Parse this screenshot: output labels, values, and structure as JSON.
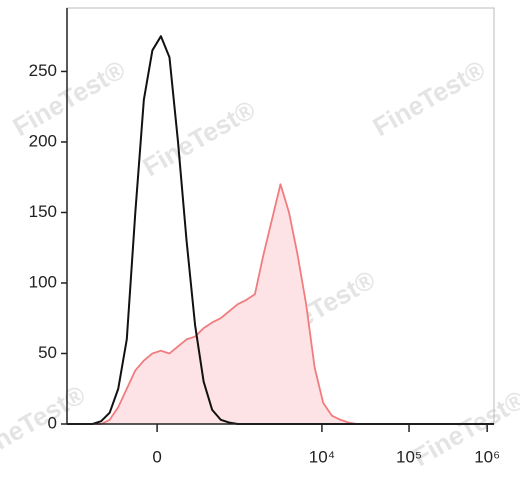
{
  "chart_data": {
    "type": "line",
    "watermark": "FineTest®",
    "x": [
      0,
      20,
      40,
      60,
      80,
      100,
      120,
      140,
      160,
      180,
      200,
      220,
      240,
      260,
      280,
      300,
      320,
      340,
      360,
      380,
      400,
      420,
      440,
      460,
      480,
      500,
      520,
      540,
      560,
      580,
      600,
      620,
      640,
      660,
      680,
      700,
      720,
      740,
      760,
      780,
      800,
      820,
      840,
      860,
      880,
      900,
      920,
      940,
      960,
      980,
      1000
    ],
    "series": [
      {
        "color": "#f07c7e",
        "fill": "#fde3e5",
        "area": true,
        "values": [
          0,
          0,
          0,
          0,
          0,
          3,
          12,
          25,
          38,
          45,
          50,
          52,
          50,
          55,
          60,
          62,
          68,
          72,
          75,
          80,
          85,
          88,
          92,
          120,
          145,
          170,
          150,
          120,
          85,
          40,
          15,
          6,
          3,
          1,
          0,
          0,
          0,
          0,
          0,
          0,
          0,
          0,
          0,
          0,
          0,
          0,
          0,
          0,
          0,
          0,
          0
        ]
      },
      {
        "color": "#111111",
        "area": false,
        "values": [
          0,
          0,
          0,
          0,
          2,
          8,
          25,
          60,
          150,
          230,
          265,
          275,
          260,
          200,
          130,
          70,
          30,
          10,
          3,
          1,
          0,
          0,
          0,
          0,
          0,
          0,
          0,
          0,
          0,
          0,
          0,
          0,
          0,
          0,
          0,
          0,
          0,
          0,
          0,
          0,
          0,
          0,
          0,
          0,
          0,
          0,
          0,
          0,
          0,
          0,
          0
        ]
      }
    ],
    "xlim": [
      0,
      1000
    ],
    "xticks": [
      {
        "value": 211,
        "label": "0"
      },
      {
        "value": 597,
        "label": "10⁴"
      },
      {
        "value": 801,
        "label": "10⁵"
      },
      {
        "value": 984,
        "label": "10⁶"
      }
    ],
    "ylim": [
      0,
      295
    ],
    "yticks": [
      0,
      50,
      100,
      150,
      200,
      250
    ]
  }
}
